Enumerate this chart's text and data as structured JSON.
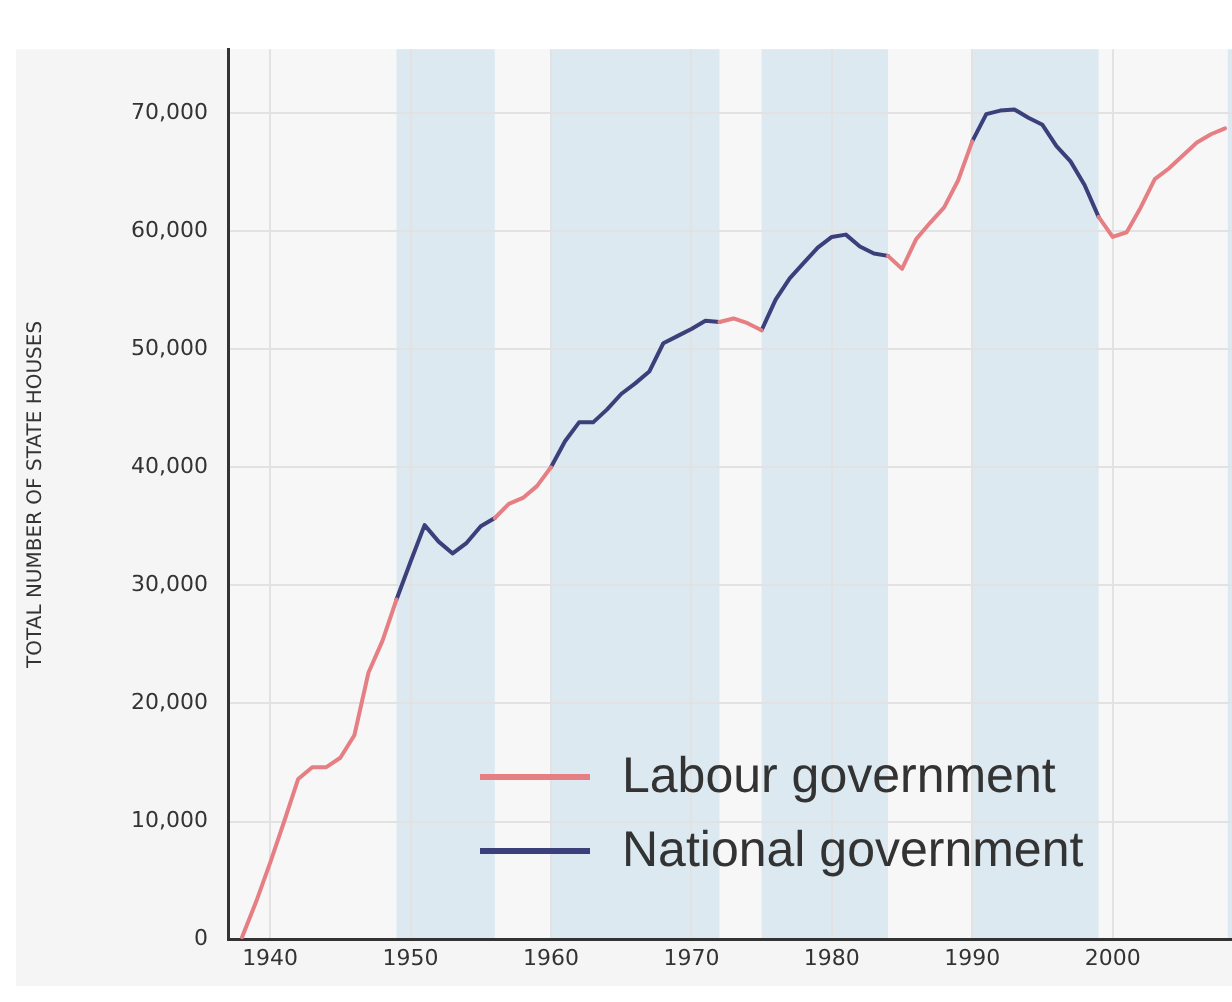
{
  "chart_data": {
    "type": "line",
    "ylabel": "TOTAL NUMBER OF STATE HOUSES",
    "x": [
      1938,
      1939,
      1940,
      1941,
      1942,
      1943,
      1944,
      1945,
      1946,
      1947,
      1948,
      1949,
      1950,
      1951,
      1952,
      1953,
      1954,
      1955,
      1956,
      1957,
      1958,
      1959,
      1960,
      1961,
      1962,
      1963,
      1964,
      1965,
      1966,
      1967,
      1968,
      1969,
      1970,
      1971,
      1972,
      1973,
      1974,
      1975,
      1976,
      1977,
      1978,
      1979,
      1980,
      1981,
      1982,
      1983,
      1984,
      1985,
      1986,
      1987,
      1988,
      1989,
      1990,
      1991,
      1992,
      1993,
      1994,
      1995,
      1996,
      1997,
      1998,
      1999,
      2000,
      2001,
      2002,
      2003,
      2004,
      2005,
      2006,
      2007,
      2008
    ],
    "series": [
      {
        "name": "Labour government",
        "color": "#e57f84",
        "values": [
          200,
          3200,
          6500,
          10000,
          13600,
          14600,
          14600,
          15400,
          17300,
          22600,
          25300,
          28800,
          null,
          null,
          null,
          null,
          null,
          null,
          35700,
          36900,
          37400,
          38400,
          40000,
          null,
          null,
          null,
          null,
          null,
          null,
          null,
          null,
          null,
          null,
          null,
          52300,
          52600,
          52200,
          51600,
          null,
          null,
          null,
          null,
          null,
          null,
          null,
          null,
          57900,
          56800,
          59300,
          60700,
          62000,
          64300,
          67600,
          null,
          null,
          null,
          null,
          null,
          null,
          null,
          null,
          61200,
          59500,
          59900,
          62000,
          64400,
          65300,
          66400,
          67500,
          68200,
          68700
        ]
      },
      {
        "name": "National government",
        "color": "#3b3f7a",
        "values": [
          null,
          null,
          null,
          null,
          null,
          null,
          null,
          null,
          null,
          null,
          null,
          28800,
          32000,
          35100,
          33700,
          32700,
          33600,
          35000,
          35700,
          null,
          null,
          null,
          40000,
          42200,
          43800,
          43800,
          44900,
          46200,
          47100,
          48100,
          50500,
          51100,
          51700,
          52400,
          52300,
          null,
          null,
          51600,
          54200,
          56000,
          57300,
          58600,
          59500,
          59700,
          58700,
          58100,
          57900,
          null,
          null,
          null,
          null,
          null,
          67600,
          69900,
          70200,
          70300,
          69600,
          69000,
          67200,
          65900,
          63900,
          61200,
          null,
          null,
          null,
          null,
          null,
          null,
          null,
          null,
          null
        ]
      }
    ],
    "xlim": [
      1937,
      2008.5
    ],
    "xticks": [
      1940,
      1950,
      1960,
      1970,
      1980,
      1990,
      2000
    ],
    "ylim": [
      0,
      75400
    ],
    "yticks": [
      0,
      {
        "value": 10000,
        "label": "10,000"
      },
      {
        "value": 20000,
        "label": "20,000"
      },
      {
        "value": 30000,
        "label": "30,000"
      },
      {
        "value": 40000,
        "label": "40,000"
      },
      {
        "value": 50000,
        "label": "50,000"
      },
      {
        "value": 60000,
        "label": "60,000"
      },
      {
        "value": 70000,
        "label": "70,000"
      }
    ],
    "bands": [
      {
        "axis": "x",
        "from": 1949,
        "to": 1956,
        "color": "#dce9f1"
      },
      {
        "axis": "x",
        "from": 1960,
        "to": 1972,
        "color": "#dce9f1"
      },
      {
        "axis": "x",
        "from": 1975,
        "to": 1984,
        "color": "#dce9f1"
      },
      {
        "axis": "x",
        "from": 1990,
        "to": 1999,
        "color": "#dce9f1"
      },
      {
        "axis": "x",
        "from": 2008.2,
        "to": 2008.5,
        "color": "#dce9f1"
      }
    ],
    "grid": true,
    "legend": "bottom",
    "marker": "none",
    "line_style": "solid"
  }
}
